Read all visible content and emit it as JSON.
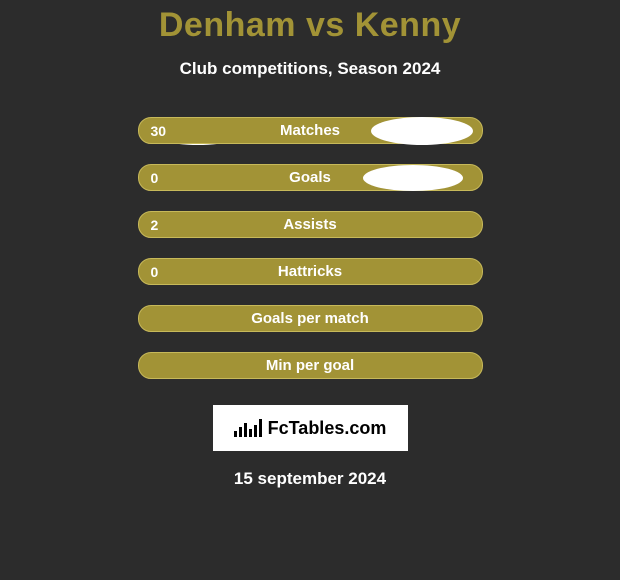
{
  "title": "Denham vs Kenny",
  "subtitle": "Club competitions, Season 2024",
  "title_color": "#a29336",
  "bar_color": "#a29336",
  "bar_border": "#c7b95a",
  "text_color": "#ffffff",
  "background_color": "#2c2c2c",
  "stats": [
    {
      "label": "Matches",
      "left_value": "30",
      "left_ellipse": true,
      "right_ellipse": true,
      "ellipse_class": "0"
    },
    {
      "label": "Goals",
      "left_value": "0",
      "left_ellipse": true,
      "right_ellipse": true,
      "ellipse_class": "1"
    },
    {
      "label": "Assists",
      "left_value": "2",
      "left_ellipse": false,
      "right_ellipse": false
    },
    {
      "label": "Hattricks",
      "left_value": "0",
      "left_ellipse": false,
      "right_ellipse": false
    },
    {
      "label": "Goals per match",
      "left_value": "",
      "left_ellipse": false,
      "right_ellipse": false
    },
    {
      "label": "Min per goal",
      "left_value": "",
      "left_ellipse": false,
      "right_ellipse": false
    }
  ],
  "logo_text": "FcTables.com",
  "logo_bar_heights": [
    6,
    10,
    14,
    8,
    12,
    18
  ],
  "date": "15 september 2024"
}
